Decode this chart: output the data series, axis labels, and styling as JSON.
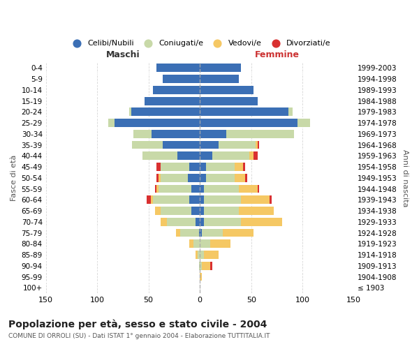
{
  "age_groups": [
    "100+",
    "95-99",
    "90-94",
    "85-89",
    "80-84",
    "75-79",
    "70-74",
    "65-69",
    "60-64",
    "55-59",
    "50-54",
    "45-49",
    "40-44",
    "35-39",
    "30-34",
    "25-29",
    "20-24",
    "15-19",
    "10-14",
    "5-9",
    "0-4"
  ],
  "birth_years": [
    "≤ 1903",
    "1904-1908",
    "1909-1913",
    "1914-1918",
    "1919-1923",
    "1924-1928",
    "1929-1933",
    "1934-1938",
    "1939-1943",
    "1944-1948",
    "1949-1953",
    "1954-1958",
    "1959-1963",
    "1964-1968",
    "1969-1973",
    "1974-1978",
    "1979-1983",
    "1984-1988",
    "1989-1993",
    "1994-1998",
    "1999-2003"
  ],
  "males": {
    "celibi": [
      0,
      0,
      0,
      0,
      0,
      1,
      4,
      8,
      10,
      8,
      12,
      10,
      22,
      36,
      47,
      83,
      67,
      54,
      46,
      36,
      42
    ],
    "coniugati": [
      0,
      0,
      1,
      2,
      6,
      18,
      28,
      30,
      36,
      32,
      26,
      28,
      34,
      30,
      18,
      6,
      2,
      0,
      0,
      0,
      0
    ],
    "vedovi": [
      0,
      0,
      0,
      2,
      4,
      4,
      6,
      6,
      2,
      2,
      2,
      0,
      0,
      0,
      0,
      0,
      0,
      0,
      0,
      0,
      0
    ],
    "divorziati": [
      0,
      0,
      0,
      0,
      0,
      0,
      0,
      0,
      4,
      2,
      2,
      4,
      0,
      0,
      0,
      0,
      0,
      0,
      0,
      0,
      0
    ]
  },
  "females": {
    "nubili": [
      0,
      0,
      0,
      0,
      0,
      2,
      4,
      4,
      4,
      4,
      6,
      6,
      12,
      18,
      26,
      95,
      86,
      56,
      52,
      38,
      40
    ],
    "coniugate": [
      0,
      0,
      2,
      4,
      10,
      20,
      36,
      34,
      36,
      34,
      28,
      28,
      36,
      36,
      66,
      12,
      4,
      0,
      0,
      0,
      0
    ],
    "vedove": [
      0,
      2,
      8,
      14,
      20,
      30,
      40,
      34,
      28,
      18,
      10,
      8,
      4,
      2,
      0,
      0,
      0,
      0,
      0,
      0,
      0
    ],
    "divorziate": [
      0,
      0,
      2,
      0,
      0,
      0,
      0,
      0,
      2,
      2,
      2,
      2,
      4,
      2,
      0,
      0,
      0,
      0,
      0,
      0,
      0
    ]
  },
  "colors": {
    "celibi": "#3B6FB5",
    "coniugati": "#C8D9A8",
    "vedovi": "#F5C864",
    "divorziati": "#D93030"
  },
  "title": "Popolazione per età, sesso e stato civile - 2004",
  "subtitle": "COMUNE DI ORROLI (SU) - Dati ISTAT 1° gennaio 2004 - Elaborazione TUTTITALIA.IT",
  "xlabel_left": "Maschi",
  "xlabel_right": "Femmine",
  "ylabel_left": "Fasce di età",
  "ylabel_right": "Anni di nascita",
  "xlim": 150,
  "background_color": "#ffffff",
  "grid_color": "#cccccc"
}
